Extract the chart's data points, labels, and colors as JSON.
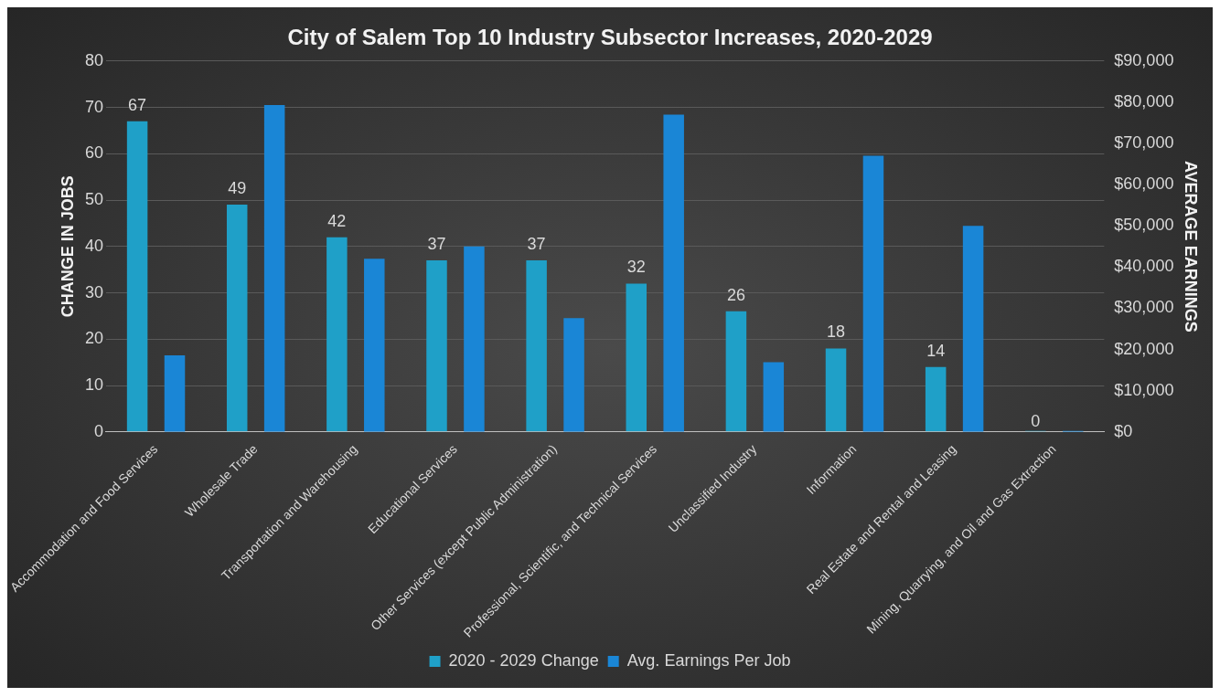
{
  "chart_data": {
    "type": "bar",
    "title": "City of Salem Top 10 Industry Subsector Increases, 2020-2029",
    "ylabel": "CHANGE IN JOBS",
    "y2label": "AVERAGE EARNINGS",
    "categories": [
      "Accommodation and Food Services",
      "Wholesale Trade",
      "Transportation and Warehousing",
      "Educational Services",
      "Other Services (except Public Administration)",
      "Professional, Scientific, and Technical Services",
      "Unclassified Industry",
      "Information",
      "Real Estate and Rental and Leasing",
      "Mining, Quarrying, and Oil and Gas Extraction"
    ],
    "series": [
      {
        "name": "2020 - 2029 Change",
        "color": "#1fa0c8",
        "values": [
          67,
          49,
          42,
          37,
          37,
          32,
          26,
          18,
          14,
          0
        ],
        "value_labels": [
          "67",
          "49",
          "42",
          "37",
          "37",
          "32",
          "26",
          "18",
          "14",
          "0"
        ]
      },
      {
        "name": "Avg. Earnings Per Job",
        "color": "#1a86d6",
        "axis": "y2",
        "values": [
          18600,
          79300,
          42000,
          45000,
          27600,
          77000,
          16900,
          67000,
          50000,
          0
        ]
      }
    ],
    "ylim": [
      0,
      80
    ],
    "yticks": [
      0,
      10,
      20,
      30,
      40,
      50,
      60,
      70,
      80
    ],
    "y2lim": [
      0,
      90000
    ],
    "y2ticks": [
      {
        "value": 0,
        "label": "$0"
      },
      {
        "value": 10000,
        "label": "$10,000"
      },
      {
        "value": 20000,
        "label": "$20,000"
      },
      {
        "value": 30000,
        "label": "$30,000"
      },
      {
        "value": 40000,
        "label": "$40,000"
      },
      {
        "value": 50000,
        "label": "$50,000"
      },
      {
        "value": 60000,
        "label": "$60,000"
      },
      {
        "value": 70000,
        "label": "$70,000"
      },
      {
        "value": 80000,
        "label": "$80,000"
      },
      {
        "value": 90000,
        "label": "$90,000"
      }
    ],
    "grid": "y",
    "legend": "bottom"
  }
}
